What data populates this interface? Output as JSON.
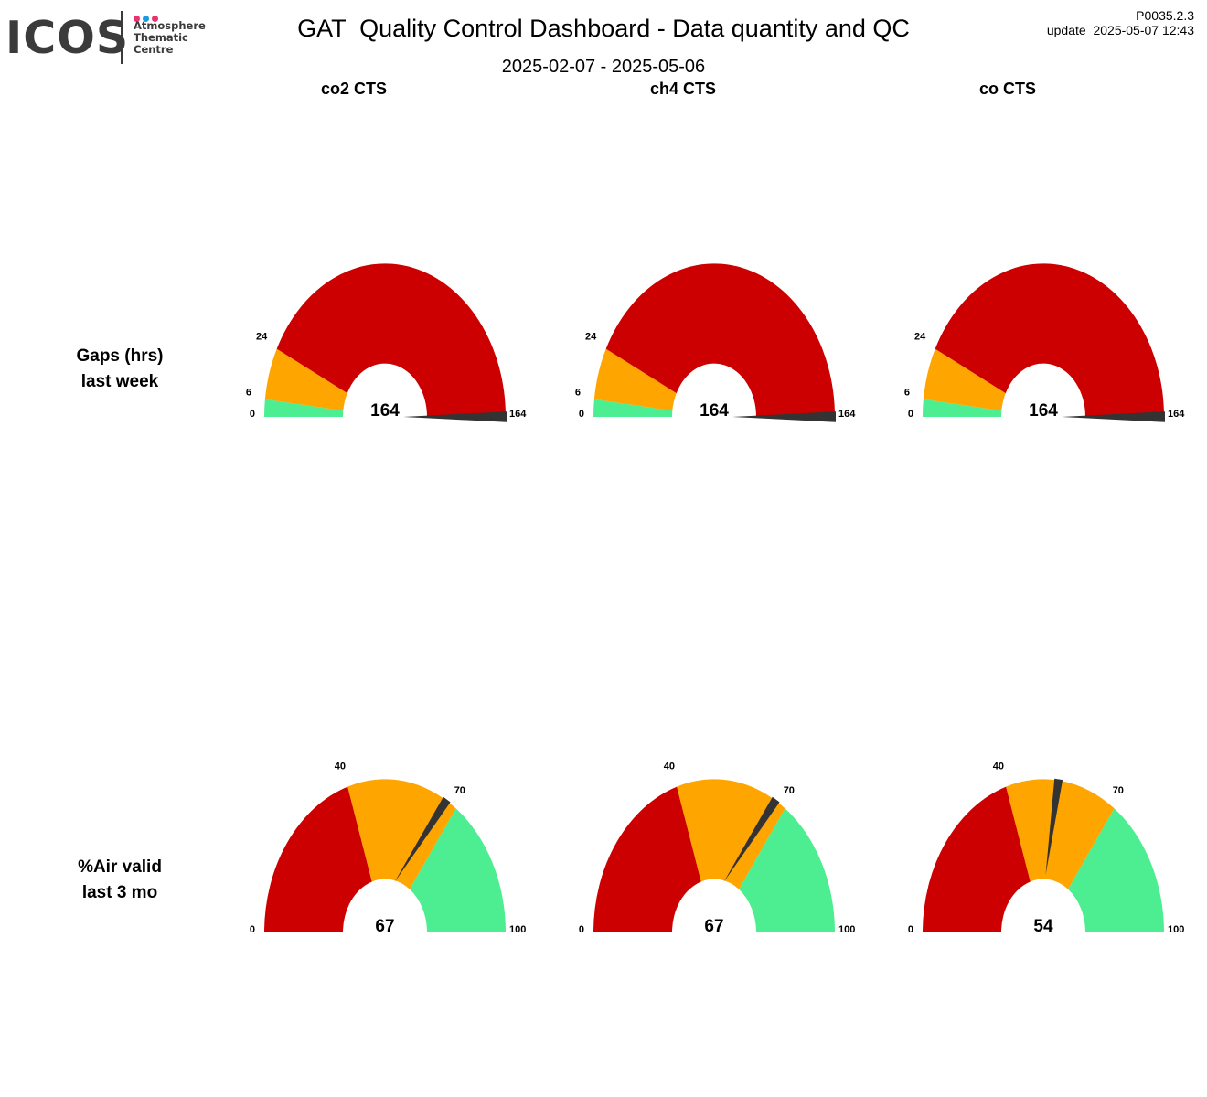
{
  "header": {
    "logo": {
      "wordmark": "ICOS",
      "lines": [
        "Atmosphere",
        "Thematic",
        "Centre"
      ],
      "dot_colors": [
        "#e8336e",
        "#1e9be0",
        "#e8336e"
      ],
      "text_color": "#3b3b3b"
    },
    "title": "GAT  Quality Control Dashboard - Data quantity and QC",
    "subtitle": "2025-02-07 - 2025-05-06",
    "version": "P0035.2.3",
    "update": "update  2025-05-07 12:43"
  },
  "columns": [
    "co2 CTS",
    "ch4 CTS",
    "co CTS"
  ],
  "rows": [
    {
      "line1": "Gaps (hrs)",
      "line2": "last week"
    },
    {
      "line1": "%Air valid",
      "line2": "last 3 mo"
    }
  ],
  "colors": {
    "red": "#cc0000",
    "orange": "#ffa500",
    "green": "#4ded91",
    "needle": "#333333"
  },
  "chart_data": [
    {
      "type": "gauge",
      "row": "Gaps (hrs) last week",
      "column": "co2 CTS",
      "range": [
        0,
        164
      ],
      "value": 164,
      "bands": [
        {
          "from": 0,
          "to": 6,
          "color": "green"
        },
        {
          "from": 6,
          "to": 24,
          "color": "orange"
        },
        {
          "from": 24,
          "to": 164,
          "color": "red"
        }
      ],
      "tick_labels": [
        "0",
        "6",
        "24",
        "164"
      ],
      "value_label": "164"
    },
    {
      "type": "gauge",
      "row": "Gaps (hrs) last week",
      "column": "ch4 CTS",
      "range": [
        0,
        164
      ],
      "value": 164,
      "bands": [
        {
          "from": 0,
          "to": 6,
          "color": "green"
        },
        {
          "from": 6,
          "to": 24,
          "color": "orange"
        },
        {
          "from": 24,
          "to": 164,
          "color": "red"
        }
      ],
      "tick_labels": [
        "0",
        "6",
        "24",
        "164"
      ],
      "value_label": "164"
    },
    {
      "type": "gauge",
      "row": "Gaps (hrs) last week",
      "column": "co CTS",
      "range": [
        0,
        164
      ],
      "value": 164,
      "bands": [
        {
          "from": 0,
          "to": 6,
          "color": "green"
        },
        {
          "from": 6,
          "to": 24,
          "color": "orange"
        },
        {
          "from": 24,
          "to": 164,
          "color": "red"
        }
      ],
      "tick_labels": [
        "0",
        "6",
        "24",
        "164"
      ],
      "value_label": "164"
    },
    {
      "type": "gauge",
      "row": "%Air valid last 3 mo",
      "column": "co2 CTS",
      "range": [
        0,
        100
      ],
      "value": 67,
      "bands": [
        {
          "from": 0,
          "to": 40,
          "color": "red"
        },
        {
          "from": 40,
          "to": 70,
          "color": "orange"
        },
        {
          "from": 70,
          "to": 100,
          "color": "green"
        }
      ],
      "tick_labels": [
        "0",
        "40",
        "70",
        "100"
      ],
      "value_label": "67"
    },
    {
      "type": "gauge",
      "row": "%Air valid last 3 mo",
      "column": "ch4 CTS",
      "range": [
        0,
        100
      ],
      "value": 67,
      "bands": [
        {
          "from": 0,
          "to": 40,
          "color": "red"
        },
        {
          "from": 40,
          "to": 70,
          "color": "orange"
        },
        {
          "from": 70,
          "to": 100,
          "color": "green"
        }
      ],
      "tick_labels": [
        "0",
        "40",
        "70",
        "100"
      ],
      "value_label": "67"
    },
    {
      "type": "gauge",
      "row": "%Air valid last 3 mo",
      "column": "co CTS",
      "range": [
        0,
        100
      ],
      "value": 54,
      "bands": [
        {
          "from": 0,
          "to": 40,
          "color": "red"
        },
        {
          "from": 40,
          "to": 70,
          "color": "orange"
        },
        {
          "from": 70,
          "to": 100,
          "color": "green"
        }
      ],
      "tick_labels": [
        "0",
        "40",
        "70",
        "100"
      ],
      "value_label": "54"
    }
  ]
}
